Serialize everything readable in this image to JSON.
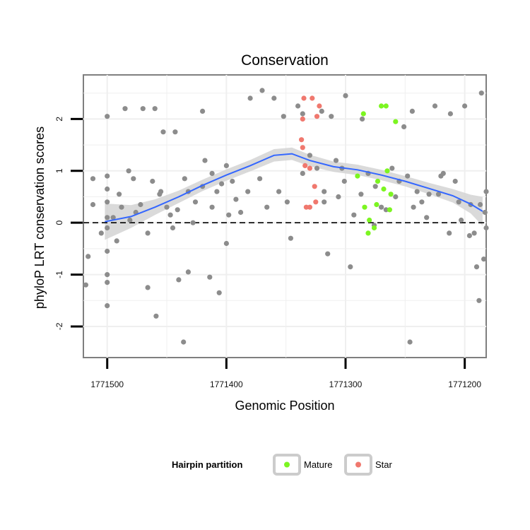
{
  "chart_data": {
    "type": "scatter",
    "title": "Conservation",
    "xlabel": "Genomic Position",
    "ylabel": "phyloP LRT conservation scores",
    "x_reversed": true,
    "xlim": [
      1771182,
      1771520
    ],
    "ylim": [
      -2.6,
      2.85
    ],
    "x_ticks": [
      1771500,
      1771400,
      1771300,
      1771200
    ],
    "x_tick_labels": [
      "1771500",
      "1771400",
      "1771300",
      "1771200"
    ],
    "y_ticks": [
      -2,
      -1,
      0,
      1,
      2
    ],
    "y_tick_labels": [
      "-2",
      "-1",
      "0",
      "1",
      "2"
    ],
    "reference_line": {
      "y": 0,
      "style": "dashed"
    },
    "grid": true,
    "legend": {
      "title": "Hairpin partition",
      "position": "bottom",
      "entries": [
        {
          "label": "Mature",
          "color": "#7cf521"
        },
        {
          "label": "Star",
          "color": "#f0786e"
        }
      ]
    },
    "colors": {
      "background_points": "#8c8c8c",
      "mature": "#7cf521",
      "star": "#f0786e",
      "smooth": "#3366ff",
      "ribbon": "#d4d4d4"
    },
    "series": [
      {
        "color": "#8c8c8c",
        "points": [
          [
            1771500,
            2.05
          ],
          [
            1771500,
            0.9
          ],
          [
            1771500,
            0.4
          ],
          [
            1771500,
            -0.1
          ],
          [
            1771500,
            -0.55
          ],
          [
            1771500,
            -1.0
          ],
          [
            1771500,
            -1.15
          ],
          [
            1771500,
            -1.6
          ],
          [
            1771500,
            0.1
          ],
          [
            1771500,
            0.65
          ],
          [
            1771490,
            0.55
          ],
          [
            1771485,
            2.2
          ],
          [
            1771482,
            1.0
          ],
          [
            1771478,
            0.85
          ],
          [
            1771470,
            2.2
          ],
          [
            1771466,
            -1.25
          ],
          [
            1771460,
            2.2
          ],
          [
            1771459,
            -1.8
          ],
          [
            1771455,
            0.6
          ],
          [
            1771453,
            1.75
          ],
          [
            1771450,
            0.3
          ],
          [
            1771445,
            -0.1
          ],
          [
            1771443,
            1.75
          ],
          [
            1771440,
            -1.1
          ],
          [
            1771436,
            -2.3
          ],
          [
            1771435,
            0.85
          ],
          [
            1771432,
            -0.95
          ],
          [
            1771428,
            0.0
          ],
          [
            1771420,
            2.15
          ],
          [
            1771418,
            1.2
          ],
          [
            1771414,
            -1.05
          ],
          [
            1771412,
            0.3
          ],
          [
            1771408,
            0.6
          ],
          [
            1771406,
            -1.35
          ],
          [
            1771400,
            1.1
          ],
          [
            1771400,
            -0.4
          ],
          [
            1771395,
            0.8
          ],
          [
            1771388,
            0.2
          ],
          [
            1771380,
            2.4
          ],
          [
            1771370,
            2.55
          ],
          [
            1771360,
            2.4
          ],
          [
            1771352,
            2.05
          ],
          [
            1771349,
            0.4
          ],
          [
            1771346,
            -0.3
          ],
          [
            1771340,
            2.25
          ],
          [
            1771336,
            2.1
          ],
          [
            1771330,
            1.3
          ],
          [
            1771320,
            2.15
          ],
          [
            1771318,
            0.6
          ],
          [
            1771315,
            -0.6
          ],
          [
            1771312,
            2.05
          ],
          [
            1771308,
            1.2
          ],
          [
            1771303,
            1.05
          ],
          [
            1771300,
            2.45
          ],
          [
            1771296,
            -0.85
          ],
          [
            1771293,
            0.15
          ],
          [
            1771286,
            2.0
          ],
          [
            1771275,
            0.7
          ],
          [
            1771270,
            0.3
          ],
          [
            1771261,
            1.05
          ],
          [
            1771255,
            0.8
          ],
          [
            1771251,
            1.85
          ],
          [
            1771246,
            -2.3
          ],
          [
            1771244,
            2.15
          ],
          [
            1771240,
            0.6
          ],
          [
            1771232,
            0.1
          ],
          [
            1771225,
            2.25
          ],
          [
            1771220,
            0.9
          ],
          [
            1771212,
            2.1
          ],
          [
            1771208,
            0.8
          ],
          [
            1771203,
            0.05
          ],
          [
            1771200,
            2.25
          ],
          [
            1771195,
            0.35
          ],
          [
            1771190,
            -0.85
          ],
          [
            1771188,
            -1.5
          ],
          [
            1771186,
            2.5
          ],
          [
            1771184,
            -0.7
          ],
          [
            1771182,
            0.6
          ],
          [
            1771182,
            -0.1
          ],
          [
            1771183,
            0.2
          ],
          [
            1771187,
            0.35
          ],
          [
            1771192,
            -0.2
          ],
          [
            1771196,
            -0.25
          ],
          [
            1771205,
            0.4
          ],
          [
            1771213,
            -0.2
          ],
          [
            1771218,
            0.95
          ],
          [
            1771222,
            0.55
          ],
          [
            1771230,
            0.55
          ],
          [
            1771236,
            0.4
          ],
          [
            1771243,
            0.3
          ],
          [
            1771248,
            0.9
          ],
          [
            1771258,
            0.5
          ],
          [
            1771266,
            0.25
          ],
          [
            1771276,
            -0.05
          ],
          [
            1771281,
            0.95
          ],
          [
            1771287,
            0.55
          ],
          [
            1771301,
            0.8
          ],
          [
            1771306,
            0.5
          ],
          [
            1771318,
            0.4
          ],
          [
            1771324,
            1.05
          ],
          [
            1771336,
            0.95
          ],
          [
            1771356,
            0.6
          ],
          [
            1771366,
            0.3
          ],
          [
            1771372,
            0.85
          ],
          [
            1771382,
            0.6
          ],
          [
            1771392,
            0.45
          ],
          [
            1771398,
            0.15
          ],
          [
            1771404,
            0.75
          ],
          [
            1771412,
            0.95
          ],
          [
            1771420,
            0.7
          ],
          [
            1771426,
            0.4
          ],
          [
            1771432,
            0.6
          ],
          [
            1771441,
            0.25
          ],
          [
            1771447,
            0.15
          ],
          [
            1771456,
            0.55
          ],
          [
            1771462,
            0.8
          ],
          [
            1771466,
            -0.2
          ],
          [
            1771472,
            0.35
          ],
          [
            1771476,
            0.2
          ],
          [
            1771481,
            0.05
          ],
          [
            1771488,
            0.3
          ],
          [
            1771492,
            -0.35
          ],
          [
            1771495,
            0.1
          ],
          [
            1771505,
            -0.2
          ],
          [
            1771512,
            0.85
          ],
          [
            1771512,
            0.35
          ],
          [
            1771516,
            -0.65
          ],
          [
            1771518,
            -1.2
          ]
        ]
      },
      {
        "name": "Mature",
        "color": "#7cf521",
        "points": [
          [
            1771285,
            2.1
          ],
          [
            1771270,
            2.25
          ],
          [
            1771266,
            2.25
          ],
          [
            1771258,
            1.95
          ],
          [
            1771265,
            1.0
          ],
          [
            1771273,
            0.8
          ],
          [
            1771268,
            0.65
          ],
          [
            1771262,
            0.55
          ],
          [
            1771290,
            0.9
          ],
          [
            1771284,
            0.3
          ],
          [
            1771280,
            0.05
          ],
          [
            1771276,
            -0.1
          ],
          [
            1771281,
            -0.2
          ],
          [
            1771274,
            0.35
          ],
          [
            1771263,
            0.25
          ]
        ]
      },
      {
        "name": "Star",
        "color": "#f0786e",
        "points": [
          [
            1771335,
            2.4
          ],
          [
            1771328,
            2.4
          ],
          [
            1771322,
            2.25
          ],
          [
            1771324,
            2.05
          ],
          [
            1771336,
            2.0
          ],
          [
            1771337,
            1.6
          ],
          [
            1771336,
            1.45
          ],
          [
            1771334,
            1.1
          ],
          [
            1771330,
            1.05
          ],
          [
            1771326,
            0.7
          ],
          [
            1771325,
            0.4
          ],
          [
            1771330,
            0.3
          ],
          [
            1771333,
            0.3
          ]
        ]
      }
    ],
    "smooth_fit": {
      "x": [
        1771502,
        1771480,
        1771460,
        1771440,
        1771420,
        1771400,
        1771380,
        1771360,
        1771345,
        1771330,
        1771310,
        1771290,
        1771270,
        1771250,
        1771230,
        1771210,
        1771195,
        1771185
      ],
      "y": [
        0.02,
        0.12,
        0.3,
        0.5,
        0.72,
        0.92,
        1.1,
        1.3,
        1.33,
        1.2,
        1.08,
        1.02,
        0.92,
        0.8,
        0.66,
        0.52,
        0.36,
        0.22
      ],
      "ci_half_width": [
        0.35,
        0.22,
        0.15,
        0.12,
        0.11,
        0.11,
        0.11,
        0.12,
        0.12,
        0.11,
        0.1,
        0.1,
        0.1,
        0.1,
        0.11,
        0.13,
        0.18,
        0.28
      ]
    }
  }
}
